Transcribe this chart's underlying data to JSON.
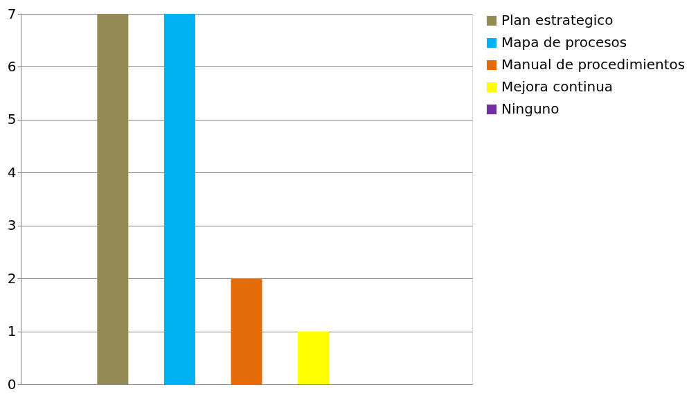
{
  "chart_data": {
    "type": "bar",
    "categories": [
      null
    ],
    "series": [
      {
        "name": "Plan estrategico",
        "color": "#948a54",
        "values": [
          7
        ]
      },
      {
        "name": "Mapa de procesos",
        "color": "#00b0f0",
        "values": [
          7
        ]
      },
      {
        "name": "Manual de procedimientos",
        "color": "#e36c09",
        "values": [
          2
        ]
      },
      {
        "name": "Mejora continua",
        "color": "#ffff00",
        "values": [
          1
        ]
      },
      {
        "name": "Ninguno",
        "color": "#7030a0",
        "values": [
          0
        ]
      }
    ],
    "ylim": [
      0,
      7
    ],
    "yticks": [
      0,
      1,
      2,
      3,
      4,
      5,
      6,
      7
    ],
    "grid": "y",
    "legend": "right"
  }
}
